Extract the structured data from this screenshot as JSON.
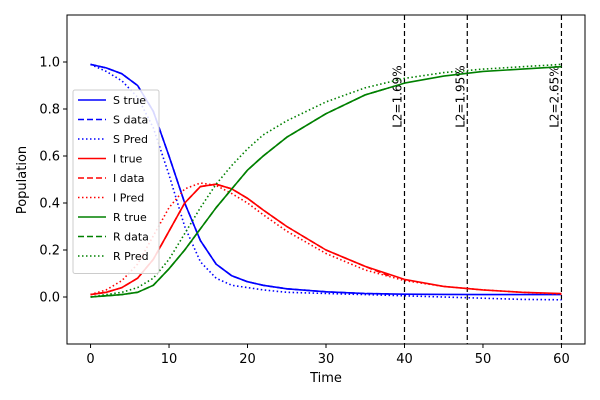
{
  "chart_data": {
    "type": "line",
    "title": "",
    "xlabel": "Time",
    "ylabel": "Population",
    "xlim": [
      -3,
      63
    ],
    "ylim": [
      -0.2,
      1.2
    ],
    "xticks": [
      0,
      10,
      20,
      30,
      40,
      50,
      60
    ],
    "yticks": [
      0.0,
      0.2,
      0.4,
      0.6,
      0.8,
      1.0
    ],
    "grid": false,
    "legend_position": "center-left",
    "series": [
      {
        "name": "S true",
        "color": "#0000ff",
        "style": "solid",
        "x": [
          0,
          2,
          4,
          6,
          8,
          10,
          12,
          14,
          16,
          18,
          20,
          22,
          25,
          30,
          35,
          40,
          45,
          50,
          55,
          60
        ],
        "y": [
          0.99,
          0.975,
          0.95,
          0.9,
          0.79,
          0.6,
          0.4,
          0.24,
          0.14,
          0.09,
          0.065,
          0.05,
          0.035,
          0.022,
          0.015,
          0.012,
          0.011,
          0.01,
          0.01,
          0.01
        ]
      },
      {
        "name": "S data",
        "color": "#0000ff",
        "style": "dashed",
        "x": [
          0,
          2,
          4,
          6,
          8,
          10,
          12,
          14,
          16,
          18,
          20,
          22,
          25,
          30,
          35,
          38
        ],
        "y": [
          0.99,
          0.975,
          0.95,
          0.9,
          0.79,
          0.6,
          0.4,
          0.24,
          0.14,
          0.09,
          0.065,
          0.05,
          0.035,
          0.022,
          0.015,
          0.013
        ]
      },
      {
        "name": "S Pred",
        "color": "#0000ff",
        "style": "dotted",
        "x": [
          0,
          2,
          4,
          6,
          8,
          10,
          12,
          14,
          16,
          18,
          20,
          22,
          25,
          30,
          35,
          40,
          45,
          50,
          55,
          60
        ],
        "y": [
          0.99,
          0.96,
          0.92,
          0.85,
          0.72,
          0.52,
          0.3,
          0.15,
          0.08,
          0.05,
          0.04,
          0.03,
          0.02,
          0.015,
          0.01,
          0.005,
          0,
          -0.005,
          -0.01,
          -0.012
        ]
      },
      {
        "name": "I true",
        "color": "#ff0000",
        "style": "solid",
        "x": [
          0,
          2,
          4,
          6,
          8,
          10,
          12,
          14,
          16,
          18,
          20,
          22,
          25,
          30,
          35,
          40,
          45,
          50,
          55,
          60
        ],
        "y": [
          0.01,
          0.02,
          0.04,
          0.08,
          0.16,
          0.28,
          0.4,
          0.47,
          0.48,
          0.46,
          0.42,
          0.37,
          0.3,
          0.2,
          0.13,
          0.075,
          0.045,
          0.03,
          0.02,
          0.015
        ]
      },
      {
        "name": "I data",
        "color": "#ff0000",
        "style": "dashed",
        "x": [
          0,
          2,
          4,
          6,
          8,
          10,
          12,
          14,
          16,
          18,
          20,
          22,
          25,
          30,
          35,
          38
        ],
        "y": [
          0.01,
          0.02,
          0.04,
          0.08,
          0.16,
          0.28,
          0.4,
          0.47,
          0.48,
          0.46,
          0.42,
          0.37,
          0.3,
          0.2,
          0.13,
          0.09
        ]
      },
      {
        "name": "I Pred",
        "color": "#ff0000",
        "style": "dotted",
        "x": [
          0,
          2,
          4,
          6,
          8,
          10,
          12,
          14,
          16,
          18,
          20,
          22,
          25,
          30,
          35,
          40,
          45,
          50,
          55,
          60
        ],
        "y": [
          0.01,
          0.03,
          0.07,
          0.14,
          0.26,
          0.38,
          0.46,
          0.485,
          0.475,
          0.44,
          0.4,
          0.35,
          0.28,
          0.185,
          0.115,
          0.07,
          0.045,
          0.03,
          0.02,
          0.012
        ]
      },
      {
        "name": "R true",
        "color": "#008000",
        "style": "solid",
        "x": [
          0,
          2,
          4,
          6,
          8,
          10,
          12,
          14,
          16,
          18,
          20,
          22,
          25,
          30,
          35,
          40,
          45,
          50,
          55,
          60
        ],
        "y": [
          0.0,
          0.005,
          0.01,
          0.02,
          0.05,
          0.12,
          0.2,
          0.29,
          0.38,
          0.46,
          0.54,
          0.6,
          0.68,
          0.78,
          0.86,
          0.91,
          0.94,
          0.96,
          0.97,
          0.98
        ]
      },
      {
        "name": "R data",
        "color": "#008000",
        "style": "dashed",
        "x": [
          0,
          2,
          4,
          6,
          8,
          10,
          12,
          14,
          16,
          18,
          20,
          22,
          25,
          30,
          35,
          38
        ],
        "y": [
          0.0,
          0.005,
          0.01,
          0.02,
          0.05,
          0.12,
          0.2,
          0.29,
          0.38,
          0.46,
          0.54,
          0.6,
          0.68,
          0.78,
          0.86,
          0.89
        ]
      },
      {
        "name": "R Pred",
        "color": "#008000",
        "style": "dotted",
        "x": [
          0,
          2,
          4,
          6,
          8,
          10,
          12,
          14,
          16,
          18,
          20,
          22,
          25,
          30,
          35,
          40,
          45,
          50,
          55,
          60
        ],
        "y": [
          0.0,
          0.01,
          0.02,
          0.04,
          0.08,
          0.16,
          0.27,
          0.38,
          0.48,
          0.56,
          0.63,
          0.69,
          0.75,
          0.83,
          0.89,
          0.93,
          0.955,
          0.97,
          0.98,
          0.99
        ]
      }
    ],
    "vlines": [
      {
        "x": 40,
        "label": "L2=1.69%"
      },
      {
        "x": 48,
        "label": "L2=1.95%"
      },
      {
        "x": 60,
        "label": "L2=2.65%"
      }
    ]
  }
}
